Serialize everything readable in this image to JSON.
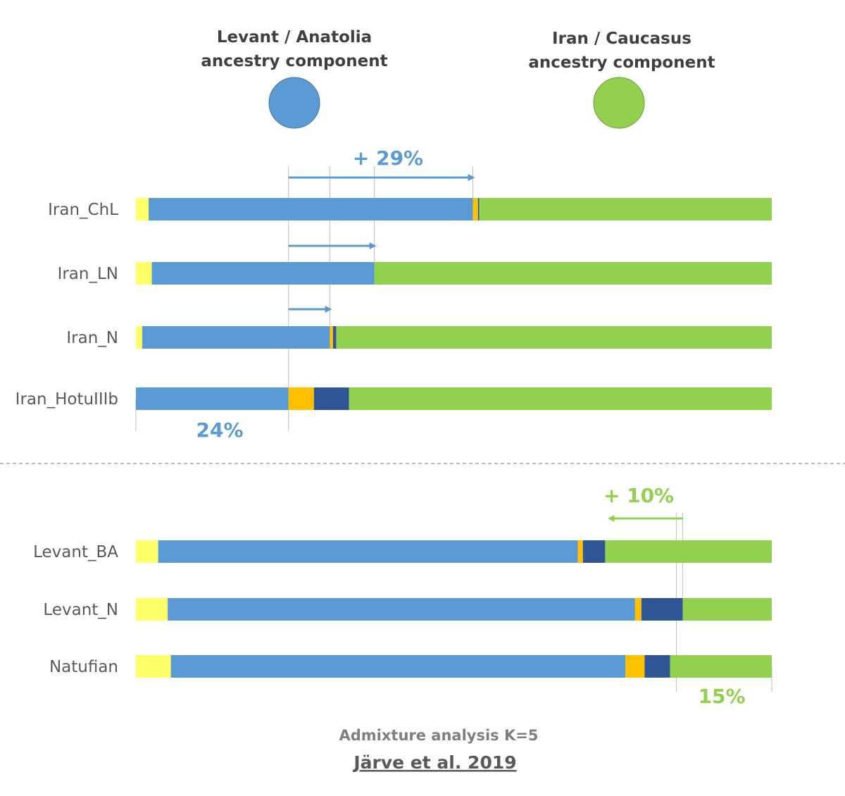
{
  "colors": {
    "yellow": "#FFFF66",
    "blue": "#5B9BD5",
    "orange": "#FFC000",
    "navy": "#2F5597",
    "green": "#92D050",
    "grid": "#BFBFBF",
    "separator": "#A6A6A6"
  },
  "chart_data": {
    "type": "bar",
    "orientation": "horizontal",
    "stacked": true,
    "normalized": true,
    "xlim": [
      0,
      100
    ],
    "legend": [
      {
        "line1": "Levant / Anatolia",
        "line2": "ancestry component",
        "color_key": "blue"
      },
      {
        "line1": "Iran / Caucasus",
        "line2": "ancestry component",
        "color_key": "green"
      }
    ],
    "component_order": [
      "yellow",
      "blue",
      "orange",
      "navy",
      "green"
    ],
    "groups": [
      {
        "name": "iran",
        "baseline_label": "24%",
        "baseline_value": 24,
        "gain_label": "+ 29%",
        "rows": [
          {
            "label": "Iran_ChL",
            "values": [
              2,
              51,
              0.8,
              0.2,
              46
            ],
            "arrow_to": 53
          },
          {
            "label": "Iran_LN",
            "values": [
              2.5,
              35,
              0,
              0,
              62.5
            ],
            "arrow_to": 37.5
          },
          {
            "label": "Iran_N",
            "values": [
              1,
              29.5,
              0.5,
              0.5,
              68.5
            ],
            "arrow_to": 30.5
          },
          {
            "label": "Iran_HotuIIIb",
            "values": [
              0,
              24,
              4,
              5.5,
              66.5
            ]
          }
        ]
      },
      {
        "name": "levant",
        "baseline_label": "15%",
        "baseline_value": 15,
        "gain_label": "+ 10%",
        "rows": [
          {
            "label": "Levant_BA",
            "values": [
              3.5,
              66,
              0.8,
              3.5,
              26.2
            ],
            "arrow_to": 25.5
          },
          {
            "label": "Levant_N",
            "values": [
              5,
              73.5,
              1,
              6.5,
              14
            ]
          },
          {
            "label": "Natufian",
            "values": [
              5.5,
              71.5,
              3,
              4,
              16
            ]
          }
        ]
      }
    ]
  },
  "footer": {
    "analysis": "Admixture analysis K=5",
    "source": "Järve et al. 2019"
  }
}
